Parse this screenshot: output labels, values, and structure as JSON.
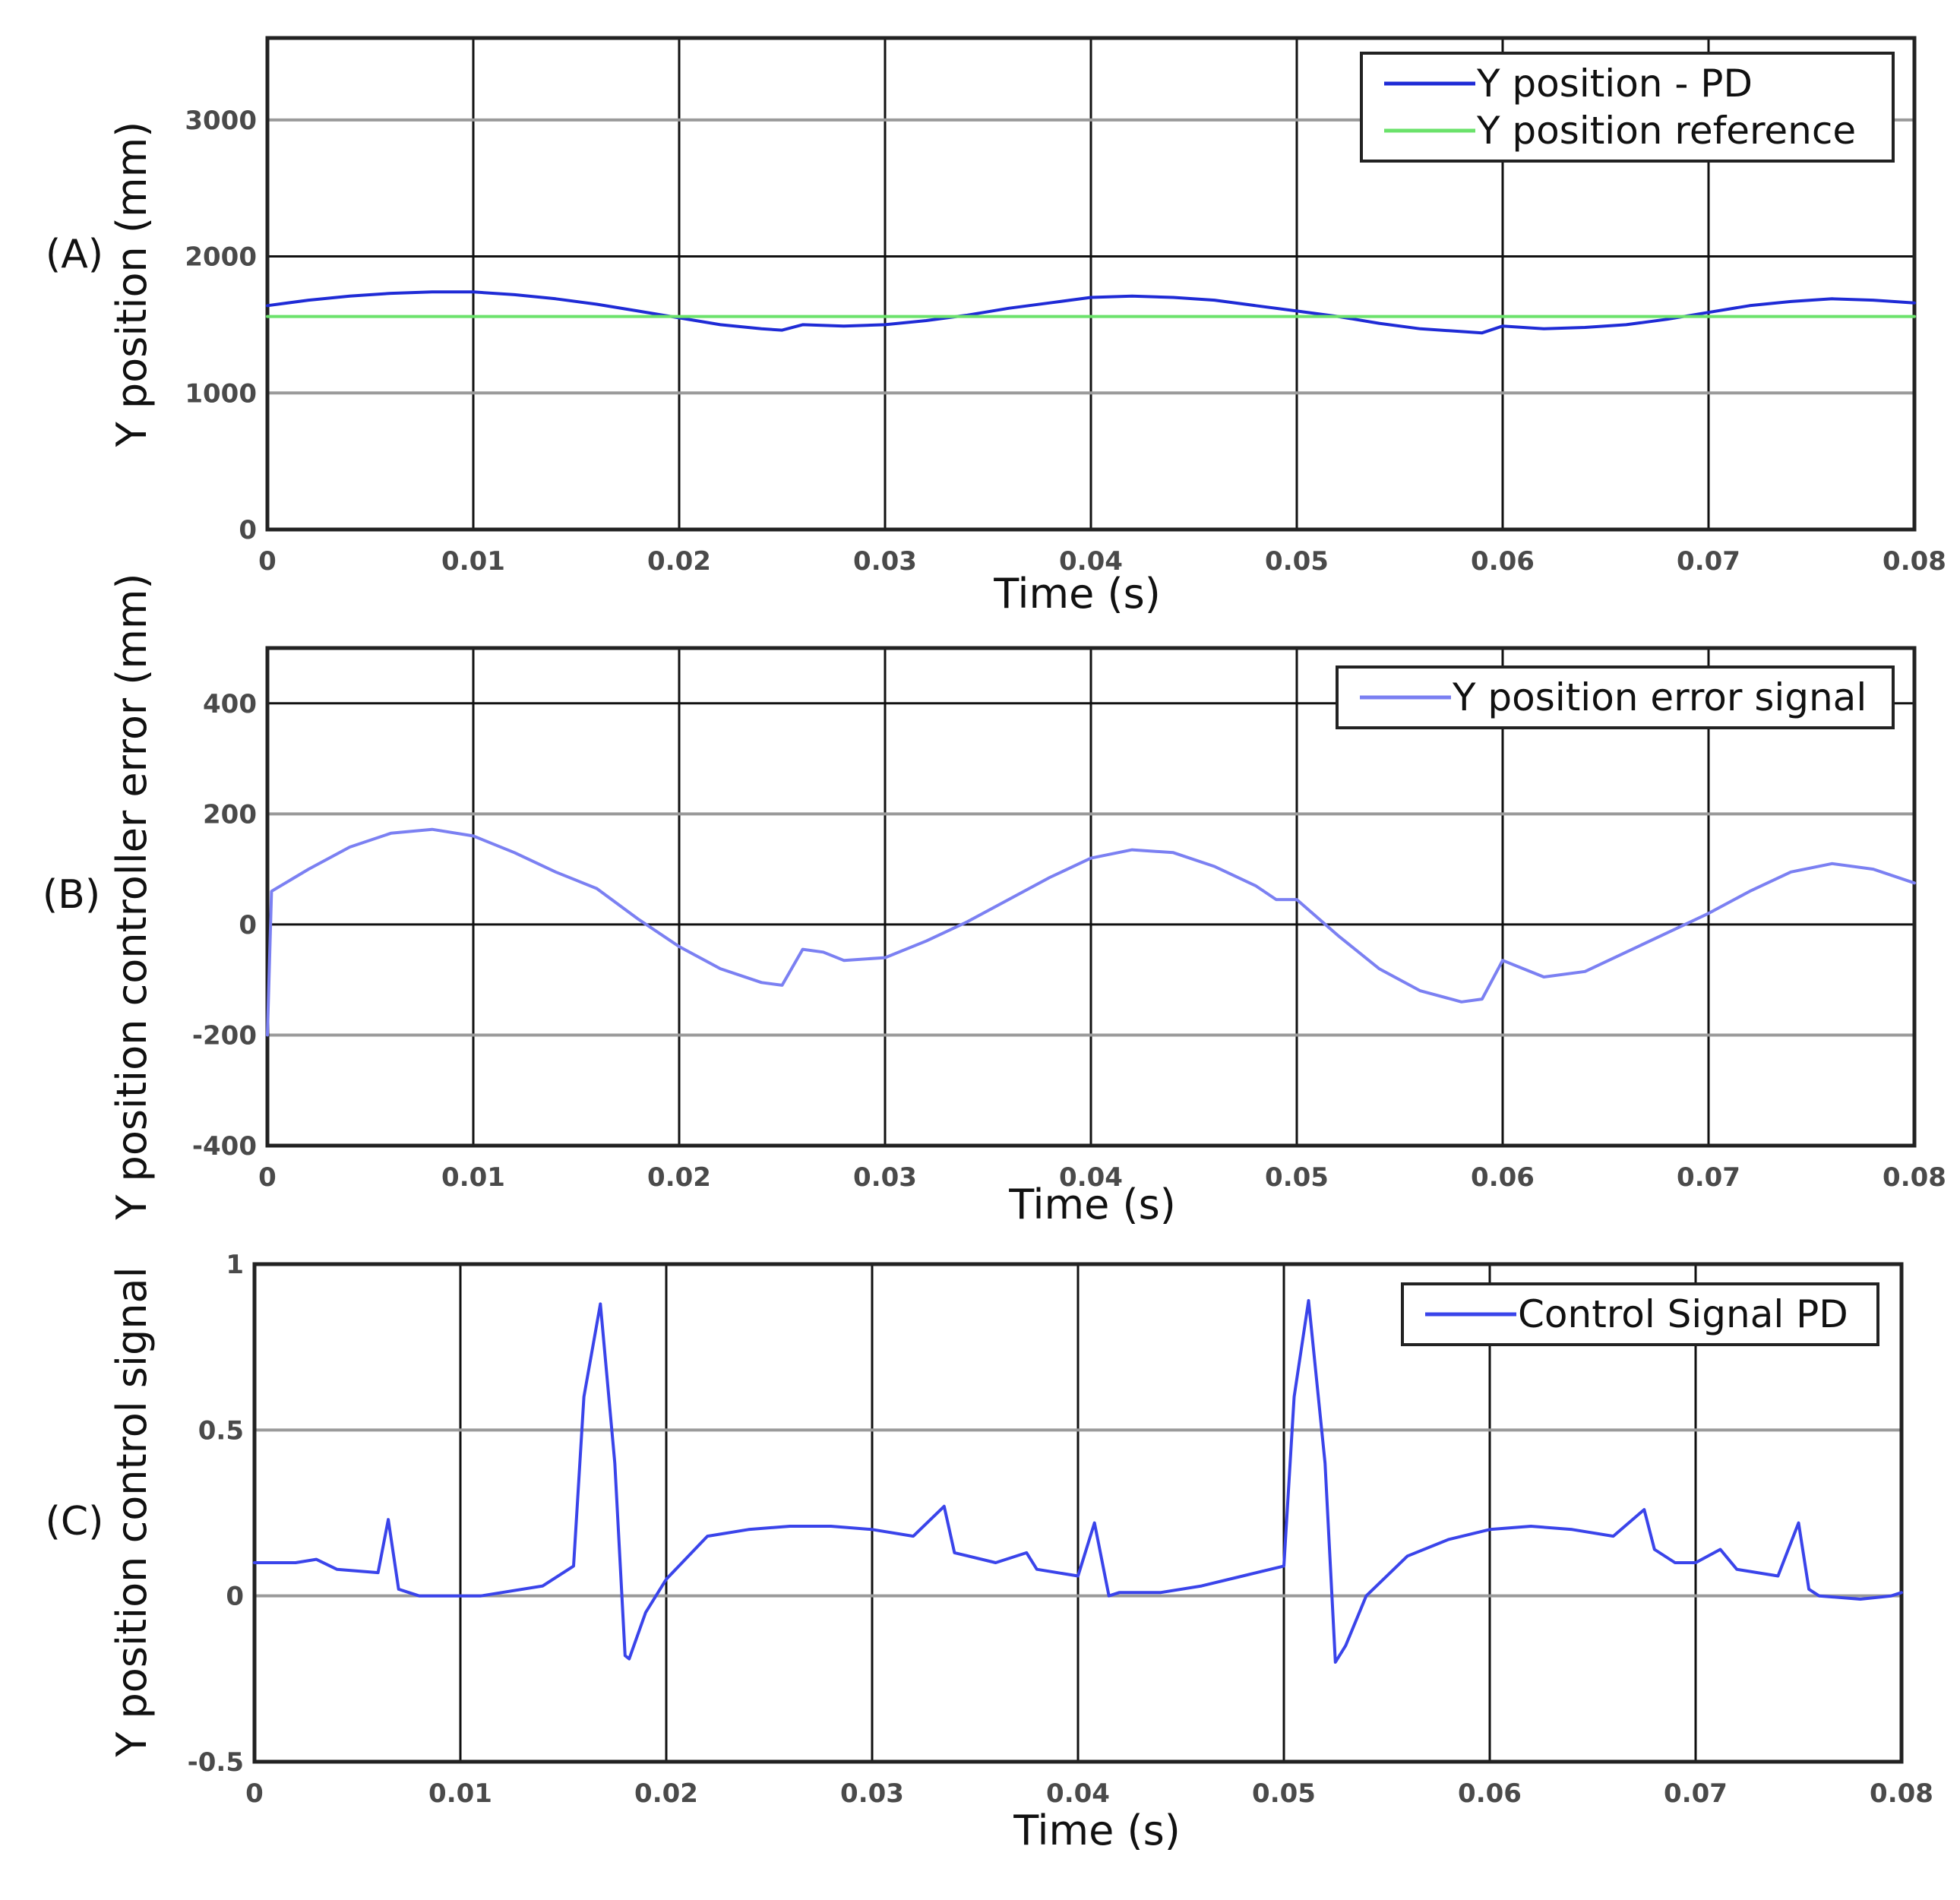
{
  "colors": {
    "pd": "#1f2bd6",
    "reference": "#6be26b",
    "error": "#7b80f2",
    "control": "#3a44ea",
    "grid_minor": "#9a9a9a",
    "grid_major": "#111111"
  },
  "chart_data": [
    {
      "panel_label": "(A)",
      "type": "line",
      "xlabel": "Time (s)",
      "ylabel": "Y position (mm)",
      "xlim": [
        0,
        0.08
      ],
      "ylim": [
        0,
        3600
      ],
      "x_ticks": [
        0,
        0.01,
        0.02,
        0.03,
        0.04,
        0.05,
        0.06,
        0.07,
        0.08
      ],
      "x_tick_labels": [
        "0",
        "0.01",
        "0.02",
        "0.03",
        "0.04",
        "0.05",
        "0.06",
        "0.07",
        "0.08"
      ],
      "y_ticks": [
        0,
        1000,
        2000,
        3000
      ],
      "y_tick_labels": [
        "0",
        "1000",
        "2000",
        "3000"
      ],
      "legend_position": "top-right",
      "grid": true,
      "series": [
        {
          "name": "Y position - PD",
          "color_key": "pd",
          "x": [
            0,
            0.002,
            0.004,
            0.006,
            0.008,
            0.01,
            0.012,
            0.014,
            0.016,
            0.018,
            0.02,
            0.022,
            0.024,
            0.025,
            0.026,
            0.028,
            0.03,
            0.032,
            0.034,
            0.036,
            0.038,
            0.04,
            0.042,
            0.044,
            0.046,
            0.048,
            0.05,
            0.052,
            0.054,
            0.056,
            0.058,
            0.059,
            0.06,
            0.062,
            0.064,
            0.066,
            0.068,
            0.07,
            0.072,
            0.074,
            0.076,
            0.078,
            0.08
          ],
          "y": [
            1640,
            1680,
            1710,
            1730,
            1740,
            1740,
            1720,
            1690,
            1650,
            1600,
            1550,
            1500,
            1470,
            1460,
            1500,
            1490,
            1500,
            1530,
            1570,
            1620,
            1660,
            1700,
            1710,
            1700,
            1680,
            1640,
            1600,
            1560,
            1510,
            1470,
            1450,
            1440,
            1490,
            1470,
            1480,
            1500,
            1540,
            1590,
            1640,
            1670,
            1690,
            1680,
            1660
          ]
        },
        {
          "name": "Y position reference",
          "color_key": "reference",
          "x": [
            0,
            0.08
          ],
          "y": [
            1560,
            1560
          ]
        }
      ]
    },
    {
      "panel_label": "(B)",
      "type": "line",
      "xlabel": "Time (s)",
      "ylabel": "Y position controller error (mm)",
      "xlim": [
        0,
        0.08
      ],
      "ylim": [
        -400,
        500
      ],
      "x_ticks": [
        0,
        0.01,
        0.02,
        0.03,
        0.04,
        0.05,
        0.06,
        0.07,
        0.08
      ],
      "x_tick_labels": [
        "0",
        "0.01",
        "0.02",
        "0.03",
        "0.04",
        "0.05",
        "0.06",
        "0.07",
        "0.08"
      ],
      "y_ticks": [
        -400,
        -200,
        0,
        200,
        400
      ],
      "y_tick_labels": [
        "-400",
        "-200",
        "0",
        "200",
        "400"
      ],
      "legend_position": "top-right",
      "grid": true,
      "series": [
        {
          "name": "Y position error signal",
          "color_key": "error",
          "x": [
            0,
            0.0002,
            0.002,
            0.004,
            0.006,
            0.008,
            0.01,
            0.012,
            0.014,
            0.015,
            0.016,
            0.018,
            0.02,
            0.022,
            0.024,
            0.025,
            0.026,
            0.027,
            0.028,
            0.03,
            0.032,
            0.034,
            0.036,
            0.038,
            0.04,
            0.042,
            0.044,
            0.046,
            0.048,
            0.049,
            0.05,
            0.052,
            0.054,
            0.056,
            0.058,
            0.059,
            0.06,
            0.061,
            0.062,
            0.064,
            0.066,
            0.068,
            0.07,
            0.072,
            0.074,
            0.076,
            0.078,
            0.08
          ],
          "y": [
            -200,
            60,
            100,
            140,
            165,
            172,
            160,
            130,
            95,
            80,
            65,
            10,
            -40,
            -80,
            -105,
            -110,
            -45,
            -50,
            -65,
            -60,
            -30,
            5,
            45,
            85,
            120,
            135,
            130,
            105,
            70,
            45,
            45,
            -20,
            -80,
            -120,
            -140,
            -135,
            -65,
            -80,
            -95,
            -85,
            -50,
            -15,
            20,
            60,
            95,
            110,
            100,
            75
          ]
        }
      ]
    },
    {
      "panel_label": "(C)",
      "type": "line",
      "xlabel": "Time (s)",
      "ylabel": "Y position control signal",
      "xlim": [
        0,
        0.08
      ],
      "ylim": [
        -0.5,
        1
      ],
      "x_ticks": [
        0,
        0.01,
        0.02,
        0.03,
        0.04,
        0.05,
        0.06,
        0.07,
        0.08
      ],
      "x_tick_labels": [
        "0",
        "0.01",
        "0.02",
        "0.03",
        "0.04",
        "0.05",
        "0.06",
        "0.07",
        "0.08"
      ],
      "y_ticks": [
        -0.5,
        0,
        0.5,
        1
      ],
      "y_tick_labels": [
        "-0.5",
        "0",
        "0.5",
        "1"
      ],
      "legend_position": "top-right",
      "grid": true,
      "series": [
        {
          "name": "Control Signal PD",
          "color_key": "control",
          "x": [
            0,
            0.002,
            0.003,
            0.004,
            0.006,
            0.0065,
            0.007,
            0.0075,
            0.008,
            0.01,
            0.011,
            0.012,
            0.014,
            0.0155,
            0.016,
            0.0168,
            0.0175,
            0.018,
            0.0182,
            0.019,
            0.02,
            0.022,
            0.024,
            0.026,
            0.028,
            0.03,
            0.032,
            0.0335,
            0.034,
            0.036,
            0.0375,
            0.038,
            0.04,
            0.0408,
            0.0415,
            0.042,
            0.044,
            0.046,
            0.048,
            0.05,
            0.0505,
            0.0512,
            0.052,
            0.0525,
            0.053,
            0.054,
            0.056,
            0.058,
            0.06,
            0.062,
            0.064,
            0.066,
            0.0675,
            0.068,
            0.069,
            0.07,
            0.0712,
            0.072,
            0.074,
            0.075,
            0.0755,
            0.076,
            0.078,
            0.0795,
            0.08
          ],
          "y": [
            0.1,
            0.1,
            0.11,
            0.08,
            0.07,
            0.23,
            0.02,
            0.01,
            0.0,
            0.0,
            0.0,
            0.01,
            0.03,
            0.09,
            0.6,
            0.88,
            0.4,
            -0.18,
            -0.19,
            -0.05,
            0.05,
            0.18,
            0.2,
            0.21,
            0.21,
            0.2,
            0.18,
            0.27,
            0.13,
            0.1,
            0.13,
            0.08,
            0.06,
            0.22,
            0.0,
            0.01,
            0.01,
            0.03,
            0.06,
            0.09,
            0.6,
            0.89,
            0.4,
            -0.2,
            -0.15,
            0.0,
            0.12,
            0.17,
            0.2,
            0.21,
            0.2,
            0.18,
            0.26,
            0.14,
            0.1,
            0.1,
            0.14,
            0.08,
            0.06,
            0.22,
            0.02,
            0.0,
            -0.01,
            0.0,
            0.01
          ]
        }
      ]
    }
  ]
}
